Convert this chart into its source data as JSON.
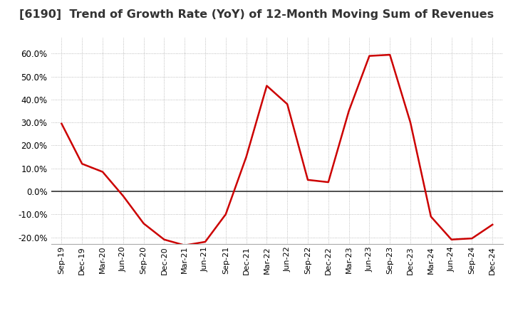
{
  "title": "[6190]  Trend of Growth Rate (YoY) of 12-Month Moving Sum of Revenues",
  "title_fontsize": 11.5,
  "title_color": "#333333",
  "line_color": "#cc0000",
  "background_color": "#ffffff",
  "grid_color": "#aaaaaa",
  "zero_line_color": "#333333",
  "ylim": [
    -0.23,
    0.67
  ],
  "yticks": [
    -0.2,
    -0.1,
    0.0,
    0.1,
    0.2,
    0.3,
    0.4,
    0.5,
    0.6
  ],
  "x_labels": [
    "Sep-19",
    "Dec-19",
    "Mar-20",
    "Jun-20",
    "Sep-20",
    "Dec-20",
    "Mar-21",
    "Jun-21",
    "Sep-21",
    "Dec-21",
    "Mar-22",
    "Jun-22",
    "Sep-22",
    "Dec-22",
    "Mar-23",
    "Jun-23",
    "Sep-23",
    "Dec-23",
    "Mar-24",
    "Jun-24",
    "Sep-24",
    "Dec-24"
  ],
  "dates": [
    0,
    1,
    2,
    3,
    4,
    5,
    6,
    7,
    8,
    9,
    10,
    11,
    12,
    13,
    14,
    15,
    16,
    17,
    18,
    19,
    20,
    21
  ],
  "values": [
    0.295,
    0.12,
    0.085,
    -0.02,
    -0.14,
    -0.21,
    -0.235,
    -0.22,
    -0.1,
    0.15,
    0.46,
    0.38,
    0.05,
    0.04,
    0.35,
    0.59,
    0.595,
    0.3,
    -0.11,
    -0.21,
    -0.205,
    -0.145
  ]
}
